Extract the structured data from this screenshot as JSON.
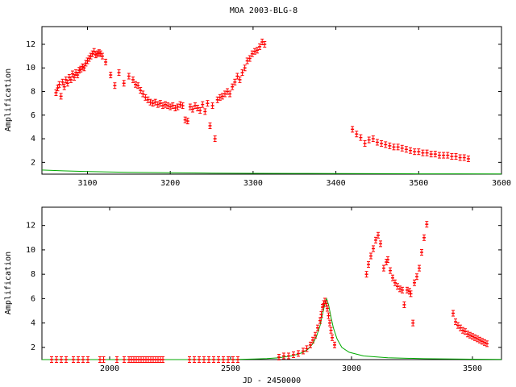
{
  "chart_data": [
    {
      "type": "scatter",
      "title": "MOA 2003-BLG-8",
      "xlabel": "",
      "ylabel": "Amplification",
      "xlim": [
        3045,
        3600
      ],
      "ylim": [
        1,
        13.5
      ],
      "xticks": [
        "3100",
        "3200",
        "3300",
        "3400",
        "3500",
        "3600"
      ],
      "yticks": [
        "2",
        "4",
        "6",
        "8",
        "10",
        "12"
      ],
      "grid": false,
      "colors": {
        "data": "#ff0000",
        "model": "#00aa00"
      },
      "series": [
        {
          "kind": "data",
          "x": [
            3062,
            3064,
            3066,
            3068,
            3070,
            3072,
            3074,
            3076,
            3078,
            3080,
            3082,
            3084,
            3086,
            3088,
            3090,
            3092,
            3094,
            3096,
            3098,
            3100,
            3102,
            3104,
            3106,
            3108,
            3110,
            3112,
            3114,
            3116,
            3118,
            3122,
            3128,
            3133,
            3138,
            3144,
            3150,
            3155,
            3158,
            3161,
            3164,
            3167,
            3170,
            3173,
            3176,
            3179,
            3182,
            3185,
            3188,
            3191,
            3194,
            3197,
            3200,
            3203,
            3206,
            3209,
            3212,
            3215,
            3218,
            3221,
            3224,
            3227,
            3230,
            3233,
            3236,
            3239,
            3242,
            3245,
            3248,
            3251,
            3254,
            3257,
            3260,
            3263,
            3266,
            3269,
            3272,
            3275,
            3278,
            3281,
            3284,
            3287,
            3290,
            3293,
            3296,
            3299,
            3302,
            3305,
            3308,
            3311,
            3314,
            3420,
            3425,
            3430,
            3435,
            3440,
            3445,
            3450,
            3455,
            3460,
            3465,
            3470,
            3475,
            3480,
            3485,
            3490,
            3495,
            3500,
            3505,
            3510,
            3515,
            3520,
            3525,
            3530,
            3535,
            3540,
            3545,
            3550,
            3555,
            3560
          ],
          "y": [
            7.9,
            8.3,
            8.6,
            7.6,
            8.8,
            8.4,
            9.0,
            8.7,
            9.2,
            9.0,
            9.5,
            9.2,
            9.6,
            9.4,
            9.8,
            9.9,
            10.1,
            10.0,
            10.4,
            10.6,
            10.8,
            11.0,
            11.2,
            11.4,
            11.1,
            11.2,
            11.3,
            11.2,
            11.0,
            10.5,
            9.4,
            8.5,
            9.6,
            8.7,
            9.3,
            9.0,
            8.6,
            8.5,
            8.1,
            7.8,
            7.5,
            7.3,
            7.1,
            7.0,
            7.1,
            6.9,
            7.0,
            6.8,
            6.9,
            6.8,
            6.7,
            6.8,
            6.6,
            6.7,
            6.9,
            6.8,
            5.6,
            5.5,
            6.7,
            6.5,
            6.8,
            6.6,
            6.4,
            6.9,
            6.3,
            7.0,
            5.1,
            6.8,
            4.0,
            7.3,
            7.5,
            7.6,
            7.8,
            8.0,
            7.8,
            8.4,
            8.8,
            9.3,
            9.0,
            9.6,
            10.0,
            10.6,
            10.8,
            11.2,
            11.4,
            11.5,
            11.8,
            12.2,
            12.0,
            4.8,
            4.4,
            4.1,
            3.6,
            3.9,
            4.0,
            3.7,
            3.6,
            3.5,
            3.4,
            3.3,
            3.3,
            3.2,
            3.1,
            3.0,
            2.9,
            2.9,
            2.8,
            2.8,
            2.7,
            2.7,
            2.6,
            2.6,
            2.6,
            2.5,
            2.5,
            2.4,
            2.4,
            2.3
          ]
        },
        {
          "kind": "model",
          "x": [
            3045,
            3070,
            3100,
            3150,
            3200,
            3250,
            3300,
            3350,
            3400,
            3450,
            3500,
            3550,
            3600
          ],
          "y": [
            1.35,
            1.28,
            1.22,
            1.16,
            1.12,
            1.09,
            1.07,
            1.06,
            1.05,
            1.04,
            1.03,
            1.03,
            1.02
          ]
        }
      ]
    },
    {
      "type": "scatter",
      "title": "",
      "xlabel": "JD - 2450000",
      "ylabel": "Amplification",
      "xlim": [
        1720,
        3620
      ],
      "ylim": [
        1,
        13.5
      ],
      "xticks": [
        "2000",
        "2500",
        "3000",
        "3500"
      ],
      "yticks": [
        "2",
        "4",
        "6",
        "8",
        "10",
        "12"
      ],
      "grid": false,
      "colors": {
        "data": "#ff0000",
        "model": "#00aa00"
      },
      "series": [
        {
          "kind": "data",
          "x": [
            1760,
            1780,
            1800,
            1820,
            1850,
            1870,
            1890,
            1910,
            1960,
            1975,
            2030,
            2060,
            2080,
            2090,
            2100,
            2110,
            2120,
            2130,
            2140,
            2150,
            2160,
            2170,
            2180,
            2190,
            2200,
            2210,
            2220,
            2330,
            2350,
            2370,
            2390,
            2410,
            2430,
            2450,
            2470,
            2490,
            2510,
            2530,
            2700,
            2720,
            2740,
            2760,
            2780,
            2800,
            2815,
            2830,
            2840,
            2850,
            2860,
            2870,
            2875,
            2880,
            2885,
            2890,
            2895,
            2900,
            2905,
            2910,
            2915,
            2920,
            2930,
            3062,
            3070,
            3080,
            3090,
            3100,
            3110,
            3120,
            3133,
            3144,
            3150,
            3160,
            3170,
            3180,
            3190,
            3200,
            3210,
            3218,
            3230,
            3240,
            3245,
            3254,
            3260,
            3270,
            3280,
            3290,
            3300,
            3311,
            3420,
            3430,
            3440,
            3450,
            3460,
            3470,
            3480,
            3490,
            3500,
            3510,
            3520,
            3530,
            3540,
            3550,
            3560
          ],
          "y": [
            1.0,
            1.0,
            1.0,
            1.0,
            1.0,
            1.0,
            1.0,
            1.0,
            1.0,
            1.0,
            1.0,
            1.0,
            1.0,
            1.0,
            1.0,
            1.0,
            1.0,
            1.0,
            1.0,
            1.0,
            1.0,
            1.0,
            1.0,
            1.0,
            1.0,
            1.0,
            1.0,
            1.0,
            1.0,
            1.0,
            1.0,
            1.0,
            1.0,
            1.0,
            1.0,
            1.0,
            1.0,
            1.0,
            1.2,
            1.3,
            1.3,
            1.4,
            1.5,
            1.7,
            1.9,
            2.2,
            2.6,
            3.0,
            3.6,
            4.2,
            4.7,
            5.3,
            5.6,
            5.8,
            5.6,
            5.2,
            4.6,
            4.0,
            3.4,
            2.8,
            2.2,
            8.0,
            8.8,
            9.5,
            10.1,
            10.8,
            11.2,
            10.5,
            8.5,
            9.0,
            9.2,
            8.3,
            7.7,
            7.3,
            7.0,
            6.8,
            6.7,
            5.5,
            6.7,
            6.6,
            6.4,
            4.0,
            7.3,
            7.8,
            8.5,
            9.8,
            11.0,
            12.1,
            4.8,
            4.1,
            3.8,
            3.6,
            3.4,
            3.3,
            3.1,
            3.0,
            2.9,
            2.8,
            2.7,
            2.6,
            2.5,
            2.4,
            2.3
          ]
        },
        {
          "kind": "model",
          "x": [
            1720,
            2000,
            2300,
            2500,
            2600,
            2650,
            2700,
            2750,
            2780,
            2800,
            2820,
            2840,
            2855,
            2870,
            2880,
            2890,
            2897,
            2905,
            2915,
            2925,
            2940,
            2960,
            2990,
            3050,
            3150,
            3300,
            3500,
            3620
          ],
          "y": [
            1.0,
            1.0,
            1.0,
            1.0,
            1.05,
            1.08,
            1.15,
            1.3,
            1.45,
            1.6,
            1.85,
            2.3,
            2.9,
            3.8,
            4.7,
            5.6,
            6.0,
            5.5,
            4.5,
            3.6,
            2.7,
            2.0,
            1.6,
            1.3,
            1.15,
            1.07,
            1.03,
            1.02
          ]
        }
      ]
    }
  ]
}
